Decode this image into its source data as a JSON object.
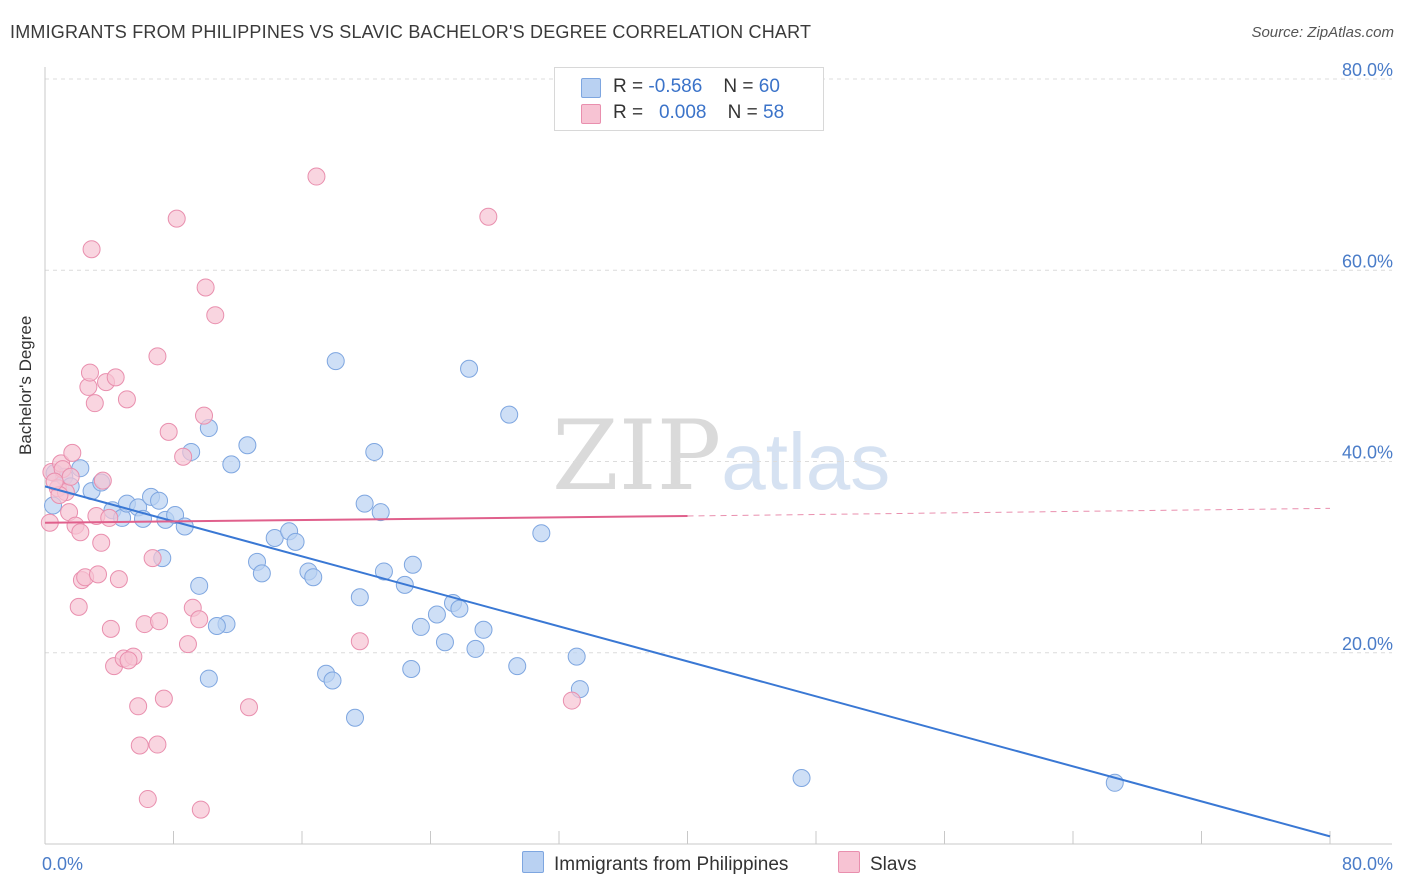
{
  "title": "IMMIGRANTS FROM PHILIPPINES VS SLAVIC BACHELOR'S DEGREE CORRELATION CHART",
  "source": "Source: ZipAtlas.com",
  "watermark": {
    "zip": "ZIP",
    "atlas": "atlas"
  },
  "legend": {
    "rows": [
      {
        "r_label": "R =",
        "r_value": "-0.586",
        "n_label": "N =",
        "n_value": "60"
      },
      {
        "r_label": "R =",
        "r_value": "0.008",
        "n_label": "N =",
        "n_value": "58"
      }
    ]
  },
  "bottom_legend": [
    "Immigrants from Philippines",
    "Slavs"
  ],
  "colors": {
    "blue_fill": "#b9d1f2",
    "blue_stroke": "#7ea6e0",
    "blue_line": "#3a78d4",
    "pink_fill": "#f7c3d3",
    "pink_stroke": "#e98fae",
    "pink_line": "#e0608c",
    "tick": "#4a7cc8",
    "grid": "#dcdcdc"
  },
  "chart_data": {
    "type": "scatter",
    "title": "IMMIGRANTS FROM PHILIPPINES VS SLAVIC BACHELOR'S DEGREE CORRELATION CHART",
    "xlabel": "",
    "ylabel": "Bachelor's Degree",
    "xlim": [
      0,
      80
    ],
    "ylim": [
      0,
      80
    ],
    "x_tick_labels": [
      "0.0%",
      "80.0%"
    ],
    "y_tick_labels": [
      "20.0%",
      "40.0%",
      "60.0%",
      "80.0%"
    ],
    "y_ticks": [
      20,
      40,
      60,
      80
    ],
    "grid": true,
    "legend_position": "top-center",
    "series": [
      {
        "name": "Immigrants from Philippines",
        "color": "#b9d1f2",
        "r": -0.586,
        "n": 60,
        "trend": {
          "x": [
            0,
            80
          ],
          "y": [
            37.4,
            0.8
          ],
          "style": "solid"
        },
        "points": [
          [
            0.6,
            38.8
          ],
          [
            1.2,
            38.4
          ],
          [
            1.6,
            37.4
          ],
          [
            2.2,
            39.3
          ],
          [
            2.9,
            36.9
          ],
          [
            3.5,
            37.8
          ],
          [
            4.2,
            34.9
          ],
          [
            4.8,
            34.1
          ],
          [
            5.1,
            35.6
          ],
          [
            5.8,
            35.2
          ],
          [
            6.1,
            34.0
          ],
          [
            6.6,
            36.3
          ],
          [
            7.1,
            35.9
          ],
          [
            7.5,
            33.9
          ],
          [
            8.1,
            34.4
          ],
          [
            8.7,
            33.2
          ],
          [
            9.1,
            41.0
          ],
          [
            10.2,
            43.5
          ],
          [
            11.6,
            39.7
          ],
          [
            12.6,
            41.7
          ],
          [
            7.3,
            29.9
          ],
          [
            9.6,
            27.0
          ],
          [
            11.3,
            23.0
          ],
          [
            10.7,
            22.8
          ],
          [
            10.2,
            17.3
          ],
          [
            13.2,
            29.5
          ],
          [
            13.5,
            28.3
          ],
          [
            14.3,
            32.0
          ],
          [
            15.2,
            32.7
          ],
          [
            15.6,
            31.6
          ],
          [
            16.4,
            28.5
          ],
          [
            16.7,
            27.9
          ],
          [
            17.5,
            17.8
          ],
          [
            17.9,
            17.1
          ],
          [
            18.1,
            50.5
          ],
          [
            19.3,
            13.2
          ],
          [
            19.6,
            25.8
          ],
          [
            19.9,
            35.6
          ],
          [
            20.5,
            41.0
          ],
          [
            20.9,
            34.7
          ],
          [
            21.1,
            28.5
          ],
          [
            22.4,
            27.1
          ],
          [
            22.9,
            29.2
          ],
          [
            22.8,
            18.3
          ],
          [
            23.4,
            22.7
          ],
          [
            24.4,
            24.0
          ],
          [
            24.9,
            21.1
          ],
          [
            25.4,
            25.2
          ],
          [
            25.8,
            24.6
          ],
          [
            26.4,
            49.7
          ],
          [
            26.8,
            20.4
          ],
          [
            27.3,
            22.4
          ],
          [
            28.9,
            44.9
          ],
          [
            29.4,
            18.6
          ],
          [
            30.9,
            32.5
          ],
          [
            33.1,
            19.6
          ],
          [
            33.3,
            16.2
          ],
          [
            47.1,
            6.9
          ],
          [
            66.6,
            6.4
          ],
          [
            0.5,
            35.4
          ]
        ]
      },
      {
        "name": "Slavs",
        "color": "#f7c3d3",
        "r": 0.008,
        "n": 58,
        "trend": {
          "x": [
            0,
            40
          ],
          "y": [
            33.6,
            34.3
          ],
          "style": "solid"
        },
        "trend_extension": {
          "x": [
            40,
            80
          ],
          "y": [
            34.3,
            35.1
          ],
          "style": "dashed"
        },
        "points": [
          [
            0.4,
            38.9
          ],
          [
            0.8,
            37.2
          ],
          [
            1.0,
            39.8
          ],
          [
            1.3,
            36.8
          ],
          [
            1.5,
            34.7
          ],
          [
            1.7,
            40.9
          ],
          [
            1.9,
            33.3
          ],
          [
            2.2,
            32.6
          ],
          [
            2.1,
            24.8
          ],
          [
            2.3,
            27.6
          ],
          [
            2.5,
            27.9
          ],
          [
            2.7,
            47.8
          ],
          [
            2.9,
            62.2
          ],
          [
            2.8,
            49.3
          ],
          [
            3.1,
            46.1
          ],
          [
            3.3,
            28.2
          ],
          [
            3.6,
            38.0
          ],
          [
            3.5,
            31.5
          ],
          [
            3.8,
            48.3
          ],
          [
            4.1,
            22.5
          ],
          [
            4.3,
            18.6
          ],
          [
            4.4,
            48.8
          ],
          [
            4.6,
            27.7
          ],
          [
            4.9,
            19.4
          ],
          [
            5.1,
            46.5
          ],
          [
            5.5,
            19.6
          ],
          [
            5.2,
            19.2
          ],
          [
            5.8,
            14.4
          ],
          [
            5.9,
            10.3
          ],
          [
            6.2,
            23.0
          ],
          [
            6.4,
            4.7
          ],
          [
            6.7,
            29.9
          ],
          [
            7.0,
            10.4
          ],
          [
            7.1,
            23.3
          ],
          [
            7.0,
            51.0
          ],
          [
            7.4,
            15.2
          ],
          [
            7.7,
            43.1
          ],
          [
            8.2,
            65.4
          ],
          [
            8.6,
            40.5
          ],
          [
            8.9,
            20.9
          ],
          [
            9.2,
            24.7
          ],
          [
            9.6,
            23.5
          ],
          [
            9.7,
            3.6
          ],
          [
            9.9,
            44.8
          ],
          [
            10.0,
            58.2
          ],
          [
            10.6,
            55.3
          ],
          [
            12.7,
            14.3
          ],
          [
            16.9,
            69.8
          ],
          [
            19.6,
            21.2
          ],
          [
            27.6,
            65.6
          ],
          [
            32.8,
            15.0
          ],
          [
            0.9,
            36.5
          ],
          [
            1.1,
            39.2
          ],
          [
            0.3,
            33.6
          ],
          [
            1.6,
            38.4
          ],
          [
            3.2,
            34.3
          ],
          [
            4.0,
            34.1
          ],
          [
            0.6,
            37.9
          ]
        ]
      }
    ]
  }
}
